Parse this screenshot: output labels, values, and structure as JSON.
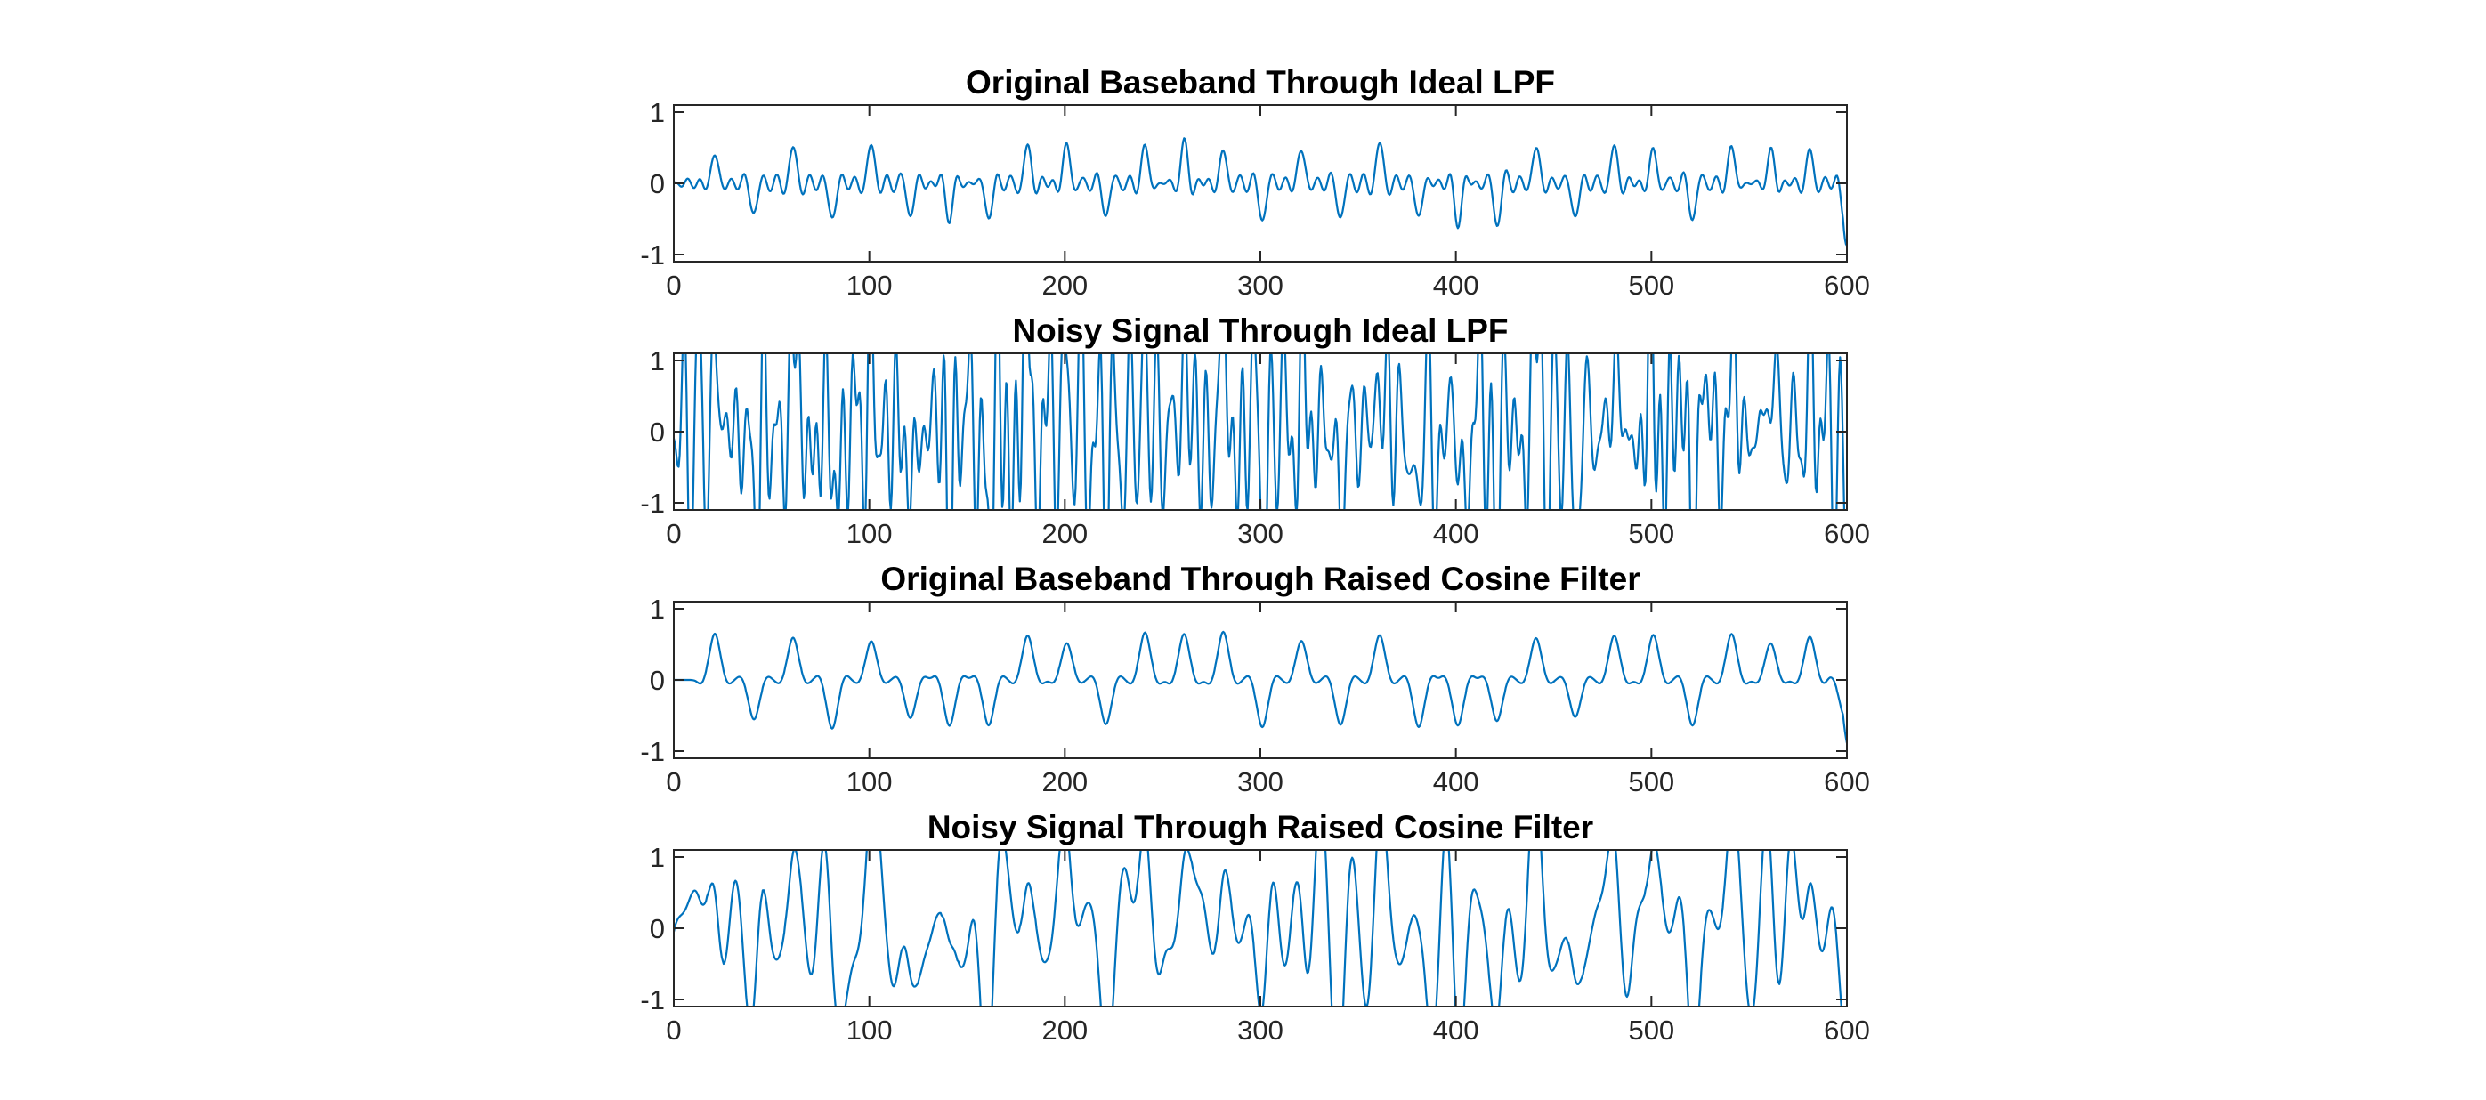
{
  "chart_data": [
    {
      "type": "line",
      "title": "Original Baseband Through Ideal LPF",
      "xlabel": "",
      "ylabel": "",
      "xlim": [
        0,
        600
      ],
      "ylim": [
        -1.1,
        1.1
      ],
      "xticks": [
        "0",
        "100",
        "200",
        "300",
        "400",
        "500",
        "600"
      ],
      "yticks": [
        "-1",
        "0",
        "1"
      ],
      "grid": false,
      "series": [
        {
          "color": "#0072bd",
          "kind": "ideal-clean",
          "peak": 0.52,
          "pulse_centers": [
            21,
            41,
            61,
            81,
            101,
            121,
            141,
            161,
            181,
            201,
            221,
            241,
            261,
            281,
            301,
            321,
            341,
            361,
            381,
            401,
            421,
            441,
            461,
            481,
            501,
            521,
            541,
            561,
            581,
            599
          ],
          "pulse_signs": [
            1,
            -1,
            1,
            -1,
            1,
            -1,
            -1,
            -1,
            1,
            1,
            -1,
            1,
            1,
            1,
            -1,
            1,
            -1,
            1,
            -1,
            -1,
            -1,
            1,
            -1,
            1,
            1,
            -1,
            1,
            1,
            1,
            -1
          ]
        }
      ]
    },
    {
      "type": "line",
      "title": "Noisy Signal Through Ideal LPF",
      "xlabel": "",
      "ylabel": "",
      "xlim": [
        0,
        600
      ],
      "ylim": [
        -1.1,
        1.1
      ],
      "xticks": [
        "0",
        "100",
        "200",
        "300",
        "400",
        "500",
        "600"
      ],
      "yticks": [
        "-1",
        "0",
        "1"
      ],
      "grid": false,
      "series": [
        {
          "color": "#0072bd",
          "kind": "ideal-noisy",
          "peak": 1.2,
          "pulse_centers": [
            21,
            41,
            61,
            81,
            101,
            121,
            141,
            161,
            181,
            201,
            221,
            241,
            261,
            281,
            301,
            321,
            341,
            361,
            381,
            401,
            421,
            441,
            461,
            481,
            501,
            521,
            541,
            561,
            581,
            599
          ],
          "pulse_signs": [
            1,
            -1,
            1,
            -1,
            1,
            -1,
            -1,
            -1,
            1,
            1,
            -1,
            1,
            1,
            1,
            -1,
            1,
            -1,
            1,
            -1,
            -1,
            -1,
            1,
            -1,
            1,
            1,
            -1,
            1,
            1,
            1,
            -1
          ]
        }
      ]
    },
    {
      "type": "line",
      "title": "Original Baseband Through Raised Cosine Filter",
      "xlabel": "",
      "ylabel": "",
      "xlim": [
        0,
        600
      ],
      "ylim": [
        -1.1,
        1.1
      ],
      "xticks": [
        "0",
        "100",
        "200",
        "300",
        "400",
        "500",
        "600"
      ],
      "yticks": [
        "-1",
        "0",
        "1"
      ],
      "grid": false,
      "series": [
        {
          "color": "#0072bd",
          "kind": "rc-clean",
          "peak": 0.6,
          "pulse_centers": [
            21,
            41,
            61,
            81,
            101,
            121,
            141,
            161,
            181,
            201,
            221,
            241,
            261,
            281,
            301,
            321,
            341,
            361,
            381,
            401,
            421,
            441,
            461,
            481,
            501,
            521,
            541,
            561,
            581,
            599
          ],
          "pulse_signs": [
            1,
            -1,
            1,
            -1,
            1,
            -1,
            -1,
            -1,
            1,
            1,
            -1,
            1,
            1,
            1,
            -1,
            1,
            -1,
            1,
            -1,
            -1,
            -1,
            1,
            -1,
            1,
            1,
            -1,
            1,
            1,
            1,
            -1
          ]
        }
      ]
    },
    {
      "type": "line",
      "title": "Noisy Signal Through Raised Cosine Filter",
      "xlabel": "",
      "ylabel": "",
      "xlim": [
        0,
        600
      ],
      "ylim": [
        -1.1,
        1.1
      ],
      "xticks": [
        "0",
        "100",
        "200",
        "300",
        "400",
        "500",
        "600"
      ],
      "yticks": [
        "-1",
        "0",
        "1"
      ],
      "grid": false,
      "series": [
        {
          "color": "#0072bd",
          "kind": "rc-noisy",
          "peak": 1.15,
          "pulse_centers": [
            21,
            41,
            61,
            81,
            101,
            121,
            141,
            161,
            181,
            201,
            221,
            241,
            261,
            281,
            301,
            321,
            341,
            361,
            381,
            401,
            421,
            441,
            461,
            481,
            501,
            521,
            541,
            561,
            581,
            599
          ],
          "pulse_signs": [
            1,
            -1,
            1,
            -1,
            1,
            -1,
            -1,
            -1,
            1,
            1,
            -1,
            1,
            1,
            1,
            -1,
            1,
            -1,
            1,
            -1,
            -1,
            -1,
            1,
            -1,
            1,
            1,
            -1,
            1,
            1,
            1,
            -1
          ]
        }
      ]
    }
  ]
}
